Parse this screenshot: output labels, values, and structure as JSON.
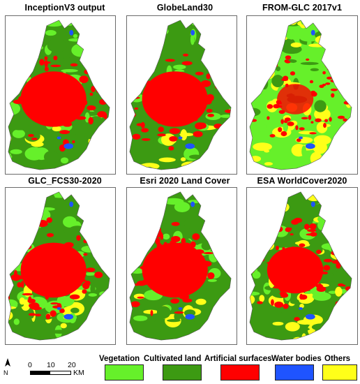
{
  "panels": [
    {
      "title": "InceptionV3 output",
      "variant": "cultivated"
    },
    {
      "title": "GlobeLand30",
      "variant": "cultivated"
    },
    {
      "title": "FROM-GLC 2017v1",
      "variant": "vegetation"
    },
    {
      "title": "GLC_FCS30-2020",
      "variant": "cultivated"
    },
    {
      "title": "Esri 2020 Land Cover",
      "variant": "cultivated"
    },
    {
      "title": "ESA WorldCover2020",
      "variant": "mixed"
    }
  ],
  "legend": [
    {
      "label": "Vegetation",
      "color": "#66f02a"
    },
    {
      "label": "Cultivated land",
      "color": "#3c9a12"
    },
    {
      "label": "Artificial surfaces",
      "color": "#ff0000"
    },
    {
      "label": "Water bodies",
      "color": "#1f54ff"
    },
    {
      "label": "Others",
      "color": "#ffff19"
    }
  ],
  "scale_bar": {
    "ticks": [
      "0",
      "10",
      "20"
    ],
    "unit": "KM"
  },
  "north_arrow": {
    "label": "N"
  },
  "colors": {
    "vegetation": "#66f02a",
    "cultivated": "#3c9a12",
    "artificial": "#ff0000",
    "water": "#1f54ff",
    "others": "#ffff19"
  }
}
